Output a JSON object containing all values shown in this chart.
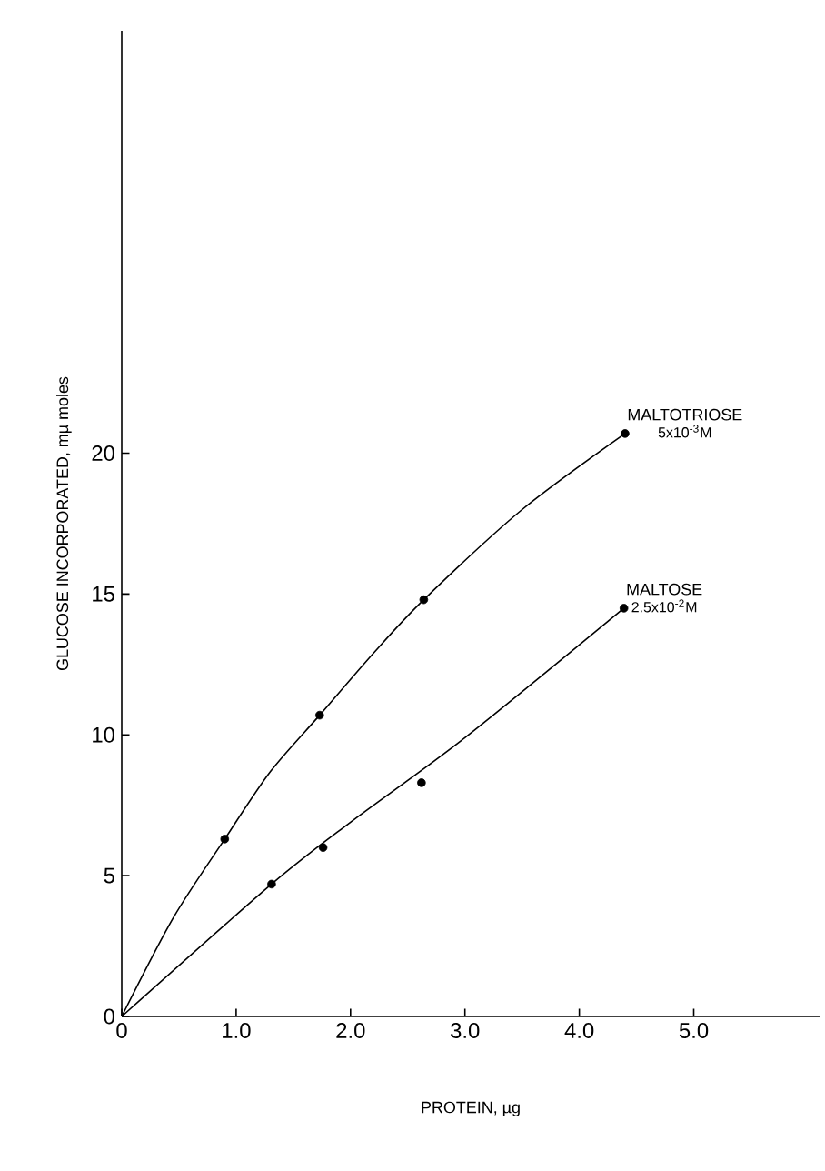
{
  "chart_data": {
    "type": "scatter",
    "xlabel": "PROTEIN, µg",
    "ylabel": "GLUCOSE INCORPORATED, mµ moles",
    "xlim": [
      0,
      6.1
    ],
    "ylim": [
      0,
      35
    ],
    "xticks": [
      0,
      {
        "value": 1,
        "label": "1.0"
      },
      {
        "value": 2,
        "label": "2.0"
      },
      {
        "value": 3,
        "label": "3.0"
      },
      {
        "value": 4,
        "label": "4.0"
      },
      {
        "value": 5,
        "label": "5.0"
      }
    ],
    "yticks": [
      0,
      5,
      10,
      15,
      20
    ],
    "grid": false,
    "series": [
      {
        "name": "MALTOTRIOSE",
        "marker": "circle",
        "color": "#000000",
        "x": [
          0.9,
          1.73,
          2.64,
          4.4
        ],
        "values": [
          6.3,
          10.7,
          14.8,
          20.7
        ]
      },
      {
        "name": "MALTOSE",
        "marker": "circle",
        "color": "#000000",
        "x": [
          1.31,
          1.76,
          2.62,
          4.39
        ],
        "values": [
          4.7,
          6.0,
          8.3,
          14.5
        ]
      },
      {
        "type": "line",
        "marker": "none",
        "color": "#000000",
        "x": [
          0,
          0.45,
          0.9,
          1.3,
          1.73,
          2.2,
          2.64,
          3.5,
          4.4
        ],
        "values": [
          0,
          3.5,
          6.3,
          8.7,
          10.7,
          12.9,
          14.8,
          18.0,
          20.7
        ]
      },
      {
        "type": "line",
        "marker": "none",
        "color": "#000000",
        "x": [
          0,
          1.31,
          2.0,
          3.0,
          4.39
        ],
        "values": [
          0,
          4.7,
          6.9,
          9.9,
          14.5
        ]
      }
    ],
    "annotations": [
      "5x10$^{-3}$M",
      "2.5x10$^{-2}$M"
    ]
  }
}
